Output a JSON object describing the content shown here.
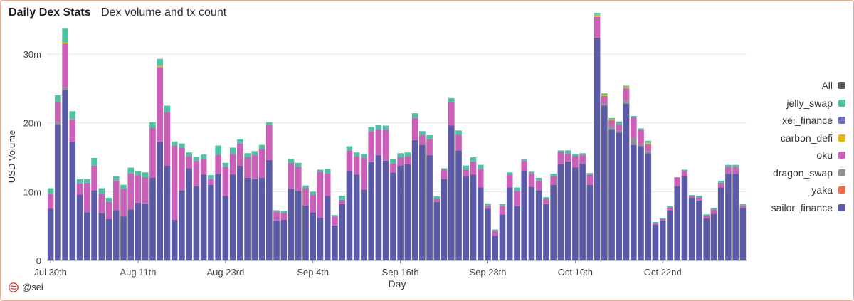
{
  "header": {
    "title": "Daily Dex Stats",
    "subtitle": "Dex volume and tx count"
  },
  "footer": {
    "handle": "@sei"
  },
  "chart_data": {
    "type": "bar",
    "stacked": true,
    "xlabel": "Day",
    "ylabel": "USD Volume",
    "ylim": [
      0,
      36000000
    ],
    "y_ticks": [
      0,
      10000000,
      20000000,
      30000000
    ],
    "y_tick_labels": [
      "0",
      "10m",
      "20m",
      "30m"
    ],
    "x_tick_labels": [
      "Jul 30th",
      "Aug 11th",
      "Aug 23rd",
      "Sep 4th",
      "Sep 16th",
      "Sep 28th",
      "Oct 10th",
      "Oct 22nd"
    ],
    "x_tick_indices": [
      0,
      12,
      24,
      36,
      48,
      60,
      72,
      84
    ],
    "grid": true,
    "legend_position": "right",
    "legend": [
      {
        "name": "All",
        "color": "#555555"
      },
      {
        "name": "jelly_swap",
        "color": "#4cc4a4"
      },
      {
        "name": "xei_finance",
        "color": "#6f6fc4"
      },
      {
        "name": "carbon_defi",
        "color": "#e8b70f"
      },
      {
        "name": "oku",
        "color": "#cc5fb8"
      },
      {
        "name": "dragon_swap",
        "color": "#909090"
      },
      {
        "name": "yaka",
        "color": "#f06a4a"
      },
      {
        "name": "sailor_finance",
        "color": "#5a5aa6"
      }
    ],
    "series": [
      {
        "name": "sailor_finance",
        "color": "#5a5aa6",
        "values": [
          7.5,
          19.8,
          24.8,
          17.3,
          9.6,
          7.0,
          10.2,
          6.9,
          6.0,
          7.3,
          6.4,
          7.4,
          8.4,
          8.3,
          12.0,
          17.3,
          13.8,
          5.9,
          10.2,
          13.4,
          10.8,
          12.5,
          11.0,
          12.6,
          9.4,
          12.5,
          13.8,
          12.0,
          11.8,
          12.0,
          14.6,
          5.8,
          5.9,
          10.4,
          10.1,
          8.0,
          7.0,
          6.2,
          9.4,
          5.1,
          8.2,
          13.0,
          12.5,
          10.3,
          14.3,
          15.3,
          14.5,
          12.8,
          13.8,
          14.0,
          17.5,
          16.8,
          15.3,
          8.5,
          11.8,
          19.6,
          16.0,
          12.2,
          12.5,
          10.6,
          7.5,
          3.6,
          6.7,
          10.6,
          7.9,
          13.1,
          10.7,
          10.2,
          8.2,
          11.0,
          14.0,
          14.4,
          13.5,
          14.1,
          11.0,
          32.4,
          22.5,
          19.1,
          18.6,
          22.8,
          16.8,
          16.6,
          15.6,
          5.2,
          5.8,
          7.3,
          10.8,
          12.3,
          9.1,
          8.7,
          6.1,
          6.8,
          10.6,
          12.6,
          12.6,
          7.6
        ]
      },
      {
        "name": "yaka",
        "color": "#f06a4a",
        "values": [
          0,
          0,
          0,
          0,
          0,
          0,
          0,
          0,
          0,
          0,
          0,
          0,
          0,
          0,
          0,
          0,
          0,
          0,
          0,
          0,
          0,
          0,
          0,
          0,
          0,
          0,
          0,
          0,
          0,
          0,
          0,
          0,
          0,
          0,
          0,
          0,
          0,
          0,
          0,
          0,
          0,
          0,
          0,
          0,
          0,
          0,
          0,
          0,
          0,
          0,
          0,
          0,
          0,
          0,
          0,
          0,
          0,
          0,
          0,
          0,
          0,
          0,
          0,
          0,
          0,
          0,
          0,
          0,
          0,
          0,
          0,
          0,
          0,
          0,
          0,
          0,
          0,
          0,
          0,
          0,
          0,
          0,
          0,
          0,
          0,
          0,
          0,
          0,
          0,
          0,
          0,
          0,
          0,
          0,
          0,
          0
        ]
      },
      {
        "name": "dragon_swap",
        "color": "#909090",
        "values": [
          0,
          0.3,
          0.4,
          0,
          0,
          0,
          0,
          0,
          0,
          0,
          0,
          0,
          0,
          0,
          0,
          0,
          0,
          0,
          0,
          0,
          0,
          0,
          0,
          0,
          0,
          0,
          0,
          0,
          0,
          0,
          0,
          0,
          0,
          0,
          0,
          0,
          0,
          0,
          0,
          0,
          0,
          0,
          0,
          0,
          0,
          0,
          0,
          0,
          0,
          0,
          0,
          0,
          0,
          0,
          0,
          0,
          0,
          0,
          0,
          0,
          0,
          0,
          0,
          0,
          0,
          0,
          0,
          0,
          0,
          0,
          0,
          0,
          0,
          0,
          0,
          0,
          0.3,
          0.4,
          0.3,
          0.4,
          1.0,
          0.3,
          0.3,
          0,
          0,
          0,
          0,
          0,
          0,
          0,
          0,
          0,
          0,
          0,
          0,
          0
        ]
      },
      {
        "name": "oku",
        "color": "#cc5fb8",
        "values": [
          2.2,
          3.0,
          6.3,
          3.2,
          1.6,
          4.3,
          3.6,
          2.8,
          2.5,
          4.3,
          4.0,
          5.3,
          4.0,
          3.8,
          7.3,
          10.8,
          7.8,
          10.8,
          6.2,
          1.7,
          3.7,
          2.3,
          0.8,
          2.8,
          4.2,
          3.0,
          3.2,
          3.0,
          3.5,
          4.2,
          5.1,
          1.3,
          1.0,
          3.8,
          3.5,
          2.5,
          2.6,
          6.7,
          3.3,
          1.3,
          0.6,
          3.0,
          2.6,
          4.6,
          4.5,
          3.8,
          4.5,
          1.3,
          1.2,
          1.1,
          3.2,
          1.4,
          2.3,
          0.5,
          1.4,
          3.4,
          2.3,
          1.0,
          1.9,
          2.7,
          0.5,
          0.7,
          1.2,
          1.9,
          2.2,
          1.4,
          1.9,
          1.4,
          0.7,
          1.3,
          1.8,
          1.2,
          1.7,
          1.2,
          1.5,
          3.0,
          1.1,
          0.9,
          0.9,
          1.8,
          3.0,
          2.1,
          1.0,
          0.2,
          0.2,
          0.4,
          1.2,
          0.7,
          0.3,
          0.5,
          0.4,
          0.6,
          0.7,
          1.0,
          1.0,
          0.4
        ]
      },
      {
        "name": "carbon_defi",
        "color": "#e8b70f",
        "values": [
          0,
          0,
          0.2,
          0,
          0,
          0,
          0,
          0,
          0,
          0,
          0,
          0,
          0,
          0,
          0,
          0.2,
          0,
          0,
          0,
          0,
          0,
          0,
          0,
          0,
          0,
          0,
          0,
          0,
          0,
          0,
          0,
          0,
          0,
          0,
          0,
          0,
          0,
          0,
          0,
          0,
          0,
          0,
          0,
          0,
          0,
          0,
          0,
          0,
          0,
          0,
          0,
          0,
          0,
          0,
          0,
          0,
          0,
          0,
          0,
          0,
          0,
          0,
          0,
          0,
          0,
          0,
          0,
          0,
          0,
          0,
          0,
          0,
          0,
          0,
          0,
          0.3,
          0.2,
          0.1,
          0,
          0.2,
          0,
          0,
          0.2,
          0,
          0,
          0,
          0,
          0,
          0,
          0,
          0,
          0,
          0,
          0,
          0,
          0
        ]
      },
      {
        "name": "xei_finance",
        "color": "#6f6fc4",
        "values": [
          0,
          0,
          0,
          0,
          0,
          0,
          0,
          0,
          0,
          0,
          0,
          0,
          0,
          0,
          0,
          0,
          0,
          0,
          0,
          0,
          0,
          0,
          0,
          0,
          0,
          0,
          0,
          0,
          0,
          0,
          0,
          0,
          0,
          0,
          0,
          0,
          0,
          0,
          0,
          0,
          0,
          0,
          0,
          0,
          0,
          0,
          0,
          0,
          0,
          0,
          0,
          0,
          0,
          0,
          0,
          0,
          0,
          0,
          0,
          0,
          0,
          0,
          0,
          0,
          0,
          0,
          0,
          0,
          0,
          0,
          0,
          0,
          0,
          0,
          0,
          0,
          0,
          0,
          0,
          0,
          0,
          0,
          0,
          0,
          0,
          0,
          0,
          0,
          0,
          0,
          0,
          0,
          0,
          0,
          0,
          0
        ]
      },
      {
        "name": "jelly_swap",
        "color": "#4cc4a4",
        "values": [
          0.8,
          0.9,
          2.0,
          1.2,
          0.6,
          0.5,
          1.1,
          0.8,
          0.6,
          0.6,
          0.6,
          0.8,
          0.6,
          0.7,
          0.8,
          1.0,
          0.9,
          0.6,
          0.6,
          0.6,
          0.6,
          0.6,
          0.6,
          1.3,
          0.6,
          0.9,
          0.6,
          0.6,
          0.6,
          0.6,
          0.4,
          0.2,
          0.3,
          0.6,
          0.6,
          0.4,
          0.4,
          0.3,
          0.6,
          0.2,
          0.6,
          0.6,
          0.6,
          0.6,
          0.6,
          0.6,
          0.6,
          0.6,
          0.6,
          0.6,
          0.7,
          0.6,
          0.6,
          0.3,
          0.2,
          0.6,
          0.6,
          0.6,
          0.6,
          0.6,
          0.3,
          0.2,
          0.3,
          0.3,
          0.5,
          0.2,
          0.3,
          0.4,
          0.3,
          0.3,
          0.2,
          0.4,
          0.3,
          0.3,
          0.2,
          0.3,
          0.2,
          0.2,
          0.4,
          0.2,
          0.2,
          0.2,
          0.3,
          0.2,
          0.2,
          0.2,
          0.1,
          0.2,
          0.1,
          0.2,
          0.2,
          0.2,
          0.3,
          0.3,
          0.3,
          0.2
        ]
      }
    ]
  }
}
